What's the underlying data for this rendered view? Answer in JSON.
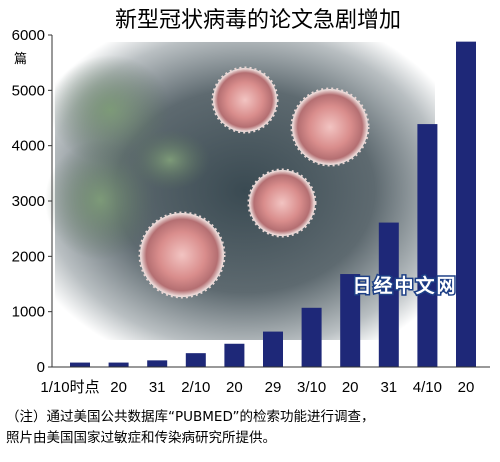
{
  "chart_data": {
    "type": "bar",
    "title": "新型冠状病毒的论文急剧增加",
    "unit": "篇",
    "categories": [
      "1/10时点",
      "20",
      "31",
      "2/10",
      "20",
      "29",
      "3/10",
      "20",
      "31",
      "4/10",
      "20"
    ],
    "values": [
      80,
      80,
      120,
      250,
      420,
      640,
      1070,
      1680,
      2610,
      4390,
      5880
    ],
    "ylim": [
      0,
      6000
    ],
    "yticks": [
      0,
      1000,
      2000,
      3000,
      4000,
      5000,
      6000
    ],
    "bar_color": "#1e2878",
    "grid": false
  },
  "watermark": "日经中文网",
  "note_lines": [
    "（注）通过美国公共数据库“PUBMED”的检索功能进行调查，",
    "照片由美国国家过敏症和传染病研究所提供。"
  ],
  "colors": {
    "bar": "#1e2878",
    "watermark_stroke": "#1d3f86"
  }
}
